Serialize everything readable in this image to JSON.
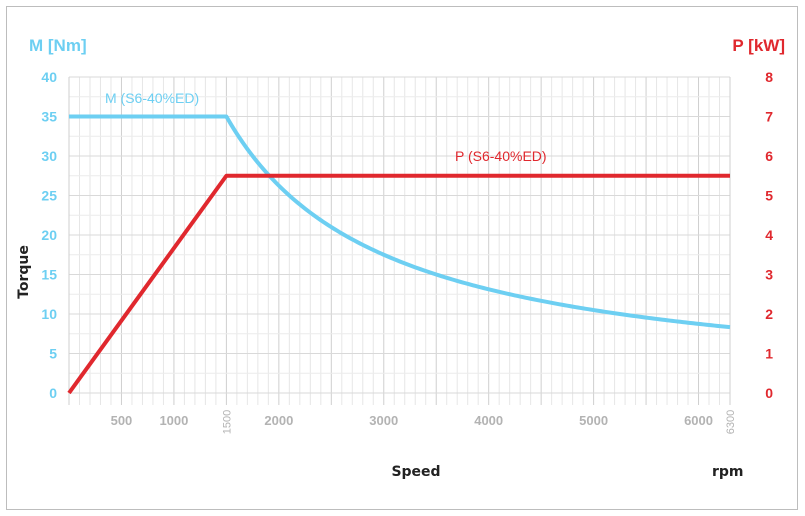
{
  "chart_data": {
    "type": "line",
    "left_axis_title": "M [Nm]",
    "right_axis_title": "P [kW]",
    "left_axis_label": "Torque",
    "xlabel": "Speed",
    "x_unit": "rpm",
    "xlim": [
      0,
      6300
    ],
    "ylim_left": [
      0,
      40
    ],
    "ylim_right": [
      0,
      8
    ],
    "x_ticks_major": [
      "500",
      "1000",
      "2000",
      "3000",
      "4000",
      "5000",
      "6000"
    ],
    "x_ticks_special": [
      "1500",
      "6300"
    ],
    "y_ticks_left": [
      "0",
      "5",
      "10",
      "15",
      "20",
      "25",
      "30",
      "35",
      "40"
    ],
    "y_ticks_right": [
      "0",
      "1",
      "2",
      "3",
      "4",
      "5",
      "6",
      "7",
      "8"
    ],
    "grid": true,
    "series": [
      {
        "name": "M (S6-40%ED)",
        "axis": "left",
        "color": "#6dcff2",
        "x": [
          0,
          1500,
          2000,
          2500,
          3000,
          3500,
          4000,
          4500,
          5000,
          5500,
          6000,
          6300
        ],
        "y": [
          35,
          35,
          26.3,
          21.0,
          17.5,
          15.0,
          13.1,
          11.7,
          10.5,
          9.5,
          8.8,
          8.3
        ]
      },
      {
        "name": "P (S6-40%ED)",
        "axis": "right",
        "color": "#e0282e",
        "x": [
          0,
          1500,
          6300
        ],
        "y": [
          0,
          5.5,
          5.5
        ]
      }
    ],
    "colors": {
      "left_axis": "#6dcff2",
      "right_axis": "#e0282e",
      "grid": "#d9d9d9",
      "tick_text": "#b3b3b3"
    }
  }
}
